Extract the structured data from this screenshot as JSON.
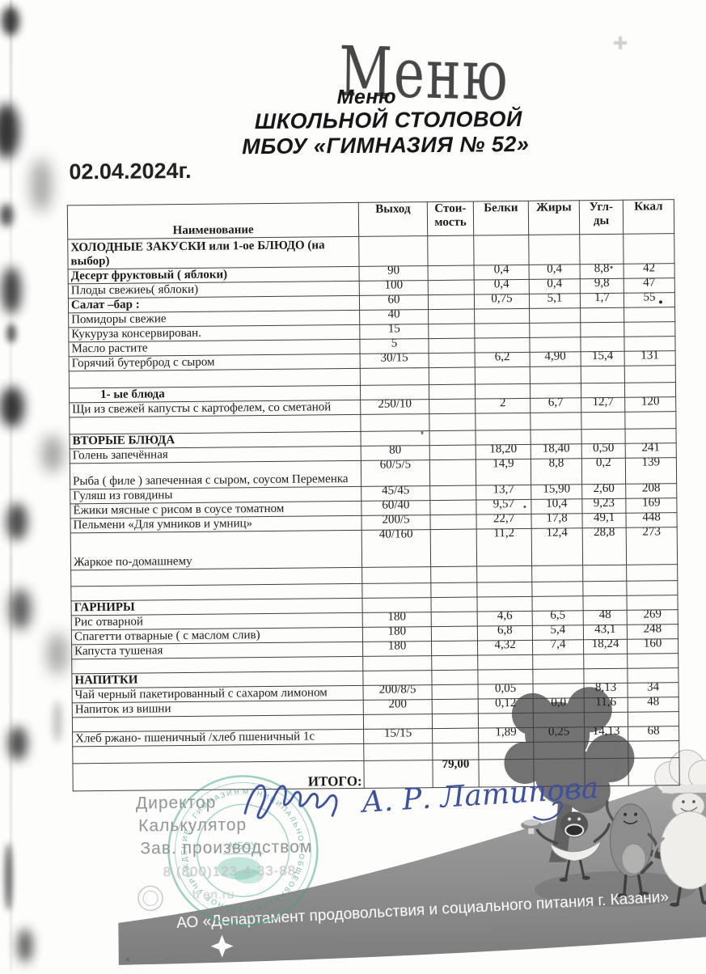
{
  "header": {
    "handwritten_title": "Меню",
    "printed_title": "Меню",
    "line2": "ШКОЛЬНОЙ СТОЛОВОЙ",
    "line3": "МБОУ «ГИМНАЗИЯ № 52»",
    "date": "02.04.2024г."
  },
  "table": {
    "headers": {
      "name": "Наименование",
      "out": "Выход",
      "cost": [
        "Стои-",
        "мость"
      ],
      "protein": "Белки",
      "fat": "Жиры",
      "carb": [
        "Угл-",
        "ды"
      ],
      "kcal": "Ккал"
    },
    "rows": [
      {
        "kind": "section",
        "name": "ХОЛОДНЫЕ ЗАКУСКИ или 1-ое БЛЮДО (на выбор)"
      },
      {
        "kind": "item",
        "bold": true,
        "name": "Десерт фруктовый ( яблоки)",
        "out": "90",
        "protein": "0,4",
        "fat": "0,4",
        "carb": "8,8",
        "kcal": "42"
      },
      {
        "kind": "item",
        "name": "Плоды свежиеь( яблоки)",
        "out": "100",
        "protein": "0,4",
        "fat": "0,4",
        "carb": "9,8",
        "kcal": "47"
      },
      {
        "kind": "item",
        "bold": true,
        "name": "Салат –бар :",
        "out": "60",
        "protein": "0,75",
        "fat": "5,1",
        "carb": "1,7",
        "kcal": "55"
      },
      {
        "kind": "item",
        "name": "Помидоры свежие",
        "out": "40"
      },
      {
        "kind": "item",
        "name": "Кукуруза консервирован.",
        "out": "15"
      },
      {
        "kind": "item",
        "name": "Масло растите",
        "out": "5"
      },
      {
        "kind": "item",
        "name": "Горячий бутерброд с сыром",
        "out": "30/15",
        "protein": "6,2",
        "fat": "4,90",
        "carb": "15,4",
        "kcal": "131"
      },
      {
        "kind": "empty"
      },
      {
        "kind": "section",
        "indent": true,
        "name": "1-   ые блюда"
      },
      {
        "kind": "item",
        "name": "Щи из свежей капусты с картофелем,  со сметаной",
        "out": "250/10",
        "protein": "2",
        "fat": "6,7",
        "carb": "12,7",
        "kcal": "120"
      },
      {
        "kind": "empty"
      },
      {
        "kind": "section",
        "name": "ВТОРЫЕ БЛЮДА"
      },
      {
        "kind": "item",
        "name": "Голень запечённая",
        "out": "80",
        "protein": "18,20",
        "fat": "18,40",
        "carb": "0,50",
        "kcal": "241"
      },
      {
        "kind": "item",
        "name": "Рыба ( филе ) запеченная с сыром, соусом Переменка",
        "out": "60/5/5",
        "protein": "14,9",
        "fat": "8,8",
        "carb": "0,2",
        "kcal": "139"
      },
      {
        "kind": "item",
        "name": "Гуляш из говядины",
        "out": "45/45",
        "protein": "13,7",
        "fat": "15,90",
        "carb": "2,60",
        "kcal": "208"
      },
      {
        "kind": "item",
        "name": "Ёжики мясные с рисом в соусе томатном",
        "out": "60/40",
        "protein": "9,57",
        "fat": "10,4",
        "carb": "9,23",
        "kcal": "169"
      },
      {
        "kind": "item",
        "name": "Пельмени  «Для умников и умниц»",
        "out": "200/5",
        "protein": "22,7",
        "fat": "17,8",
        "carb": "49,1",
        "kcal": "448"
      },
      {
        "kind": "item",
        "name": "Жаркое по-домашнему",
        "out": "40/160",
        "protein": "11,2",
        "fat": "12,4",
        "carb": "28,8",
        "kcal": "273"
      },
      {
        "kind": "empty"
      },
      {
        "kind": "empty"
      },
      {
        "kind": "section",
        "name": "ГАРНИРЫ"
      },
      {
        "kind": "item",
        "name": "Рис отварной",
        "out": "180",
        "protein": "4,6",
        "fat": "6,5",
        "carb": "48",
        "kcal": "269"
      },
      {
        "kind": "item",
        "name": "Спагетти отварные ( с маслом слив)",
        "out": "180",
        "protein": "6,8",
        "fat": "5,4",
        "carb": "43,1",
        "kcal": "248"
      },
      {
        "kind": "item",
        "name": "Капуста тушеная",
        "out": "180",
        "protein": "4,32",
        "fat": "7,4",
        "carb": "18,24",
        "kcal": "160"
      },
      {
        "kind": "empty"
      },
      {
        "kind": "section",
        "name": "НАПИТКИ"
      },
      {
        "kind": "item",
        "name": "Чай черный пакетированный с сахаром лимоном",
        "out": "200/8/5",
        "protein": "0,05",
        "carb": "8,13",
        "kcal": "34"
      },
      {
        "kind": "item",
        "name": "Напиток из вишни",
        "out": "200",
        "protein": "0,12",
        "fat": "0,0",
        "carb": "11,6",
        "kcal": "48"
      },
      {
        "kind": "empty"
      },
      {
        "kind": "item",
        "name": "Хлеб  ржано- пшеничный /хлеб пшеничный 1с",
        "out": "15/15",
        "protein": "1,89",
        "fat": "0,25",
        "carb": "14,13",
        "kcal": "68"
      },
      {
        "kind": "empty"
      },
      {
        "kind": "total",
        "name": "ИТОГО:",
        "cost": "79,00"
      }
    ]
  },
  "signoff": {
    "roles": [
      "Директор",
      "Калькулятор",
      "Зав. производством"
    ],
    "signature_name": "А. Р. Латипова",
    "phone": "8 (800)123-4-33-88",
    "site": "b'en.ru"
  },
  "stamp": {
    "ring_text": "МУНИЦИПАЛЬНОЕ ОБЩЕОБРАЗОВАТЕЛЬНОЕ УЧРЕЖДЕНИЕ • ГИМНАЗИЯ № 52 •",
    "center": "МБОУ"
  },
  "footer": {
    "banner_text": "АО «Департамент продовольствия и социального питания г. Казани»"
  },
  "colors": {
    "signature_blue": "#3d51a3",
    "stamp_green": "#3fa28c",
    "banner_gray": "#8f8f8f"
  }
}
